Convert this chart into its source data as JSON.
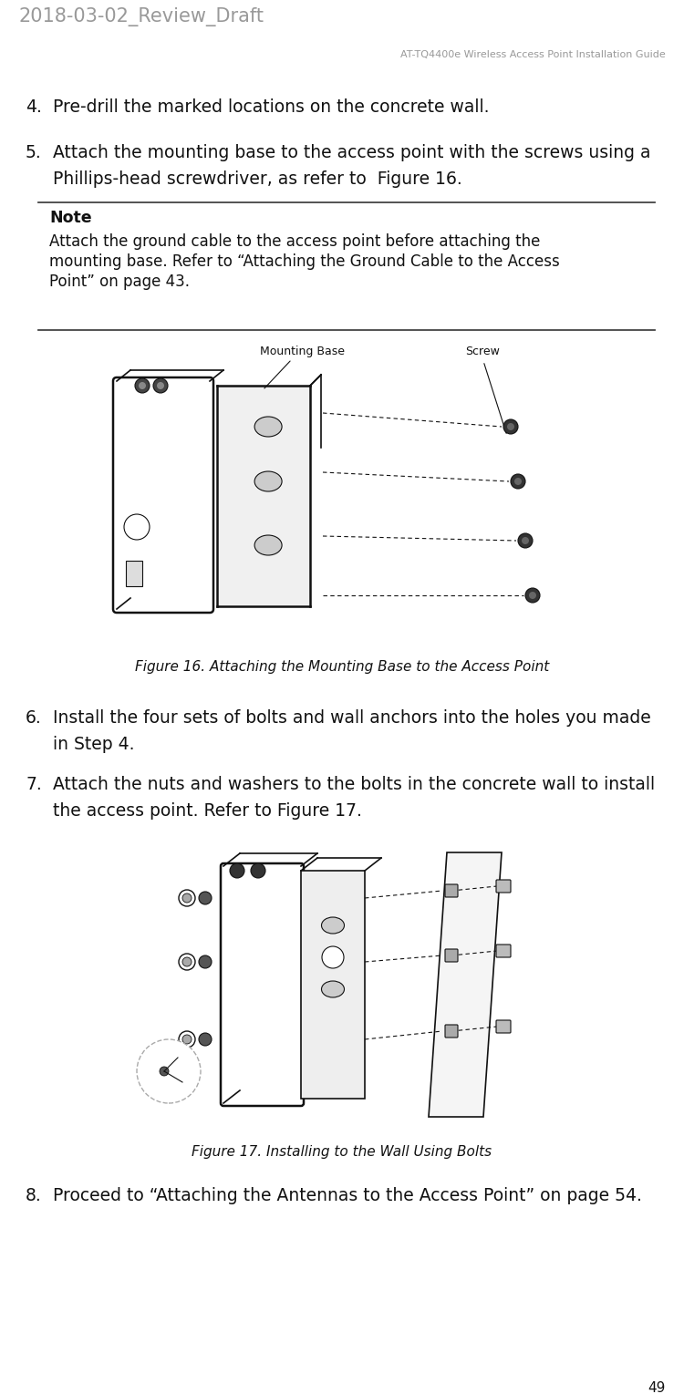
{
  "header_left": "2018-03-02_Review_Draft",
  "header_right": "AT-TQ4400e Wireless Access Point Installation Guide",
  "page_number": "49",
  "item4": "Pre-drill the marked locations on the concrete wall.",
  "item5_line1": "Attach the mounting base to the access point with the screws using a",
  "item5_line2": "Phillips-head screwdriver, as refer to  Figure 16.",
  "note_title": "Note",
  "note_body_line1": "Attach the ground cable to the access point before attaching the",
  "note_body_line2": "mounting base. Refer to “Attaching the Ground Cable to the Access",
  "note_body_line3": "Point” on page 43.",
  "fig16_caption": "Figure 16. Attaching the Mounting Base to the Access Point",
  "fig16_label_left": "Mounting Base",
  "fig16_label_right": "Screw",
  "item6_line1": "Install the four sets of bolts and wall anchors into the holes you made",
  "item6_line2": "in Step 4.",
  "item7_line1": "Attach the nuts and washers to the bolts in the concrete wall to install",
  "item7_line2": "the access point. Refer to Figure 17.",
  "fig17_caption": "Figure 17. Installing to the Wall Using Bolts",
  "item8_line1": "Proceed to “Attaching the Antennas to the Access Point” on page 54.",
  "bg_color": "#ffffff",
  "text_color": "#000000",
  "header_color": "#999999",
  "note_line_color": "#333333"
}
